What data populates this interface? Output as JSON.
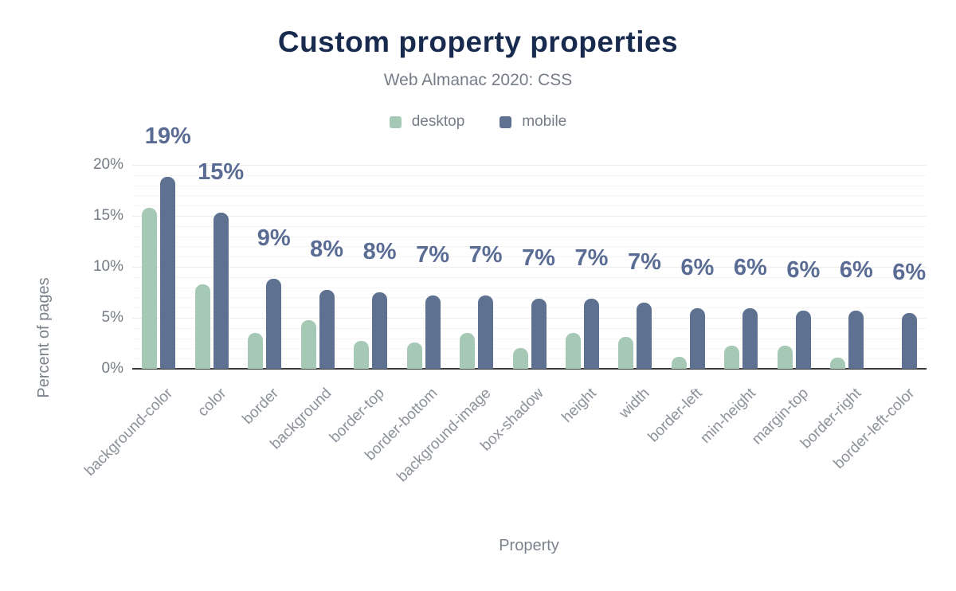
{
  "chart_data": {
    "type": "bar",
    "title": "Custom property properties",
    "subtitle": "Web Almanac 2020: CSS",
    "xlabel": "Property",
    "ylabel": "Percent of pages",
    "ylim": [
      0,
      20
    ],
    "yticks": [
      0,
      5,
      10,
      15,
      20
    ],
    "ytick_labels": [
      "0%",
      "5%",
      "10%",
      "15%",
      "20%"
    ],
    "grid": "horizontal minor gridlines every 1%, on",
    "legend_position": "top-center",
    "categories": [
      "background-color",
      "color",
      "border",
      "background",
      "border-top",
      "border-bottom",
      "background-image",
      "box-shadow",
      "height",
      "width",
      "border-left",
      "min-height",
      "margin-top",
      "border-right",
      "border-left-color"
    ],
    "series": [
      {
        "name": "desktop",
        "color": "#a6c9b5",
        "values": [
          15.8,
          8.3,
          3.5,
          4.8,
          2.7,
          2.6,
          3.5,
          2.0,
          3.5,
          3.1,
          1.2,
          2.3,
          2.3,
          1.1,
          0
        ]
      },
      {
        "name": "mobile",
        "color": "#5f7190",
        "values": [
          18.8,
          15.3,
          8.8,
          7.7,
          7.5,
          7.2,
          7.2,
          6.9,
          6.9,
          6.5,
          5.9,
          5.9,
          5.7,
          5.7,
          5.5
        ]
      }
    ],
    "annotations": [
      "19%",
      "15%",
      "9%",
      "8%",
      "8%",
      "7%",
      "7%",
      "7%",
      "7%",
      "7%",
      "6%",
      "6%",
      "6%",
      "6%",
      "6%"
    ],
    "annotation_color": "#5a6c94"
  }
}
